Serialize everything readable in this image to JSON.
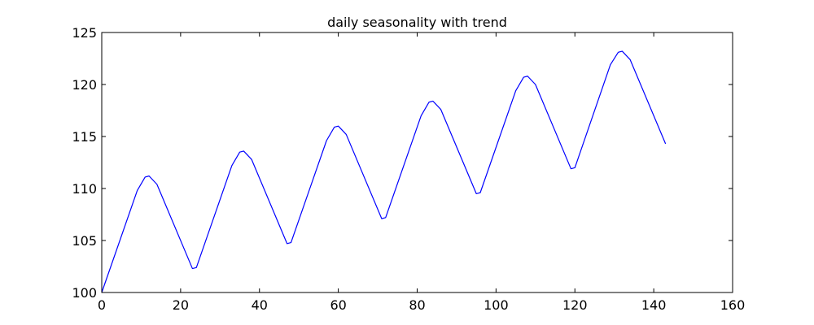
{
  "chart_data": {
    "type": "line",
    "title": "daily seasonality with trend",
    "xlabel": "",
    "ylabel": "",
    "xlim": [
      0,
      160
    ],
    "ylim": [
      100,
      125
    ],
    "xticks": [
      0,
      20,
      40,
      60,
      80,
      100,
      120,
      140,
      160
    ],
    "yticks": [
      100,
      105,
      110,
      115,
      120,
      125
    ],
    "grid": false,
    "legend": "none",
    "series": [
      {
        "color": "#0000ff",
        "x": [
          0,
          9,
          11,
          12,
          14,
          23,
          24,
          33,
          35,
          36,
          38,
          47,
          48,
          57,
          59,
          60,
          62,
          71,
          72,
          81,
          83,
          84,
          86,
          95,
          96,
          105,
          107,
          108,
          110,
          119,
          120,
          129,
          131,
          132,
          134,
          143
        ],
        "y": [
          100.0,
          109.8,
          111.1,
          111.2,
          110.4,
          102.3,
          102.4,
          112.2,
          113.5,
          113.6,
          112.8,
          104.7,
          104.8,
          114.6,
          115.9,
          116.0,
          115.2,
          107.1,
          107.2,
          117.0,
          118.3,
          118.4,
          117.6,
          109.5,
          109.6,
          119.4,
          120.7,
          120.8,
          120.0,
          111.9,
          112.0,
          121.9,
          123.1,
          123.2,
          122.4,
          114.3
        ]
      }
    ]
  }
}
